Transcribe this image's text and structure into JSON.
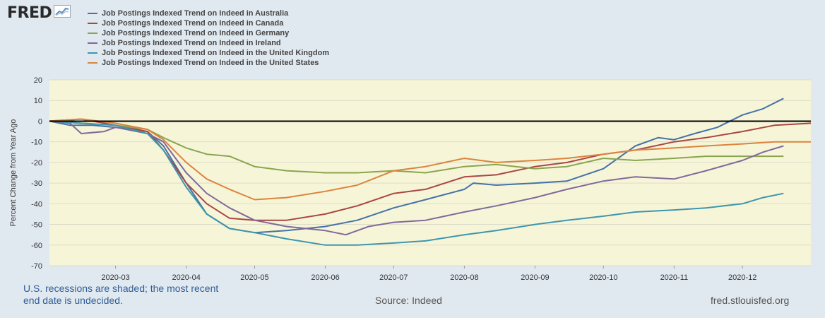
{
  "header": {
    "logo_text": "FRED",
    "logo_icon": "fred-chart-icon"
  },
  "footer": {
    "recession_note": "U.S. recessions are shaded; the most recent end date is undecided.",
    "source": "Source: Indeed",
    "site": "fred.stlouisfed.org"
  },
  "chart_data": {
    "type": "line",
    "ylabel": "Percent Change from Year Ago",
    "xlabel": "",
    "ylim": [
      -70,
      20
    ],
    "yticks": [
      20,
      10,
      0,
      -10,
      -20,
      -30,
      -40,
      -50,
      -60,
      -70
    ],
    "xlim": [
      "2020-02-01",
      "2020-12-31"
    ],
    "xticks": [
      "2020-03",
      "2020-04",
      "2020-05",
      "2020-06",
      "2020-07",
      "2020-08",
      "2020-09",
      "2020-10",
      "2020-11",
      "2020-12"
    ],
    "grid": "horizontal",
    "zero_line": true,
    "plot_background": "#f7f5d8",
    "series": [
      {
        "name": "Job Postings Indexed Trend on Indeed in Australia",
        "color": "#4572a7",
        "points": [
          [
            "2020-02-01",
            0
          ],
          [
            "2020-02-10",
            -2
          ],
          [
            "2020-02-20",
            -2
          ],
          [
            "2020-03-01",
            -3
          ],
          [
            "2020-03-15",
            -5
          ],
          [
            "2020-03-22",
            -12
          ],
          [
            "2020-04-01",
            -30
          ],
          [
            "2020-04-10",
            -45
          ],
          [
            "2020-04-20",
            -52
          ],
          [
            "2020-05-01",
            -54
          ],
          [
            "2020-05-15",
            -53
          ],
          [
            "2020-06-01",
            -51
          ],
          [
            "2020-06-15",
            -48
          ],
          [
            "2020-07-01",
            -42
          ],
          [
            "2020-07-15",
            -38
          ],
          [
            "2020-08-01",
            -33
          ],
          [
            "2020-08-05",
            -30
          ],
          [
            "2020-08-15",
            -31
          ],
          [
            "2020-09-01",
            -30
          ],
          [
            "2020-09-15",
            -29
          ],
          [
            "2020-10-01",
            -23
          ],
          [
            "2020-10-15",
            -12
          ],
          [
            "2020-10-25",
            -8
          ],
          [
            "2020-11-01",
            -9
          ],
          [
            "2020-11-10",
            -6
          ],
          [
            "2020-11-20",
            -3
          ],
          [
            "2020-12-01",
            3
          ],
          [
            "2020-12-10",
            6
          ],
          [
            "2020-12-19",
            11
          ]
        ]
      },
      {
        "name": "Job Postings Indexed Trend on Indeed in Canada",
        "color": "#aa4643",
        "points": [
          [
            "2020-02-01",
            0
          ],
          [
            "2020-02-15",
            1
          ],
          [
            "2020-03-01",
            -2
          ],
          [
            "2020-03-15",
            -5
          ],
          [
            "2020-03-22",
            -14
          ],
          [
            "2020-04-01",
            -30
          ],
          [
            "2020-04-10",
            -40
          ],
          [
            "2020-04-20",
            -47
          ],
          [
            "2020-05-01",
            -48
          ],
          [
            "2020-05-15",
            -48
          ],
          [
            "2020-06-01",
            -45
          ],
          [
            "2020-06-15",
            -41
          ],
          [
            "2020-07-01",
            -35
          ],
          [
            "2020-07-15",
            -33
          ],
          [
            "2020-08-01",
            -27
          ],
          [
            "2020-08-15",
            -26
          ],
          [
            "2020-09-01",
            -22
          ],
          [
            "2020-09-15",
            -20
          ],
          [
            "2020-10-01",
            -16
          ],
          [
            "2020-10-15",
            -14
          ],
          [
            "2020-11-01",
            -10
          ],
          [
            "2020-11-15",
            -8
          ],
          [
            "2020-12-01",
            -5
          ],
          [
            "2020-12-15",
            -2
          ],
          [
            "2020-12-31",
            -1
          ]
        ]
      },
      {
        "name": "Job Postings Indexed Trend on Indeed in Germany",
        "color": "#89a54e",
        "points": [
          [
            "2020-02-01",
            0
          ],
          [
            "2020-02-15",
            -1
          ],
          [
            "2020-03-01",
            -2
          ],
          [
            "2020-03-15",
            -4
          ],
          [
            "2020-03-22",
            -8
          ],
          [
            "2020-04-01",
            -13
          ],
          [
            "2020-04-10",
            -16
          ],
          [
            "2020-04-20",
            -17
          ],
          [
            "2020-05-01",
            -22
          ],
          [
            "2020-05-15",
            -24
          ],
          [
            "2020-06-01",
            -25
          ],
          [
            "2020-06-15",
            -25
          ],
          [
            "2020-07-01",
            -24
          ],
          [
            "2020-07-15",
            -25
          ],
          [
            "2020-08-01",
            -22
          ],
          [
            "2020-08-15",
            -21
          ],
          [
            "2020-09-01",
            -23
          ],
          [
            "2020-09-15",
            -22
          ],
          [
            "2020-10-01",
            -18
          ],
          [
            "2020-10-15",
            -19
          ],
          [
            "2020-11-01",
            -18
          ],
          [
            "2020-11-15",
            -17
          ],
          [
            "2020-12-01",
            -17
          ],
          [
            "2020-12-19",
            -17
          ]
        ]
      },
      {
        "name": "Job Postings Indexed Trend on Indeed in Ireland",
        "color": "#80699b",
        "points": [
          [
            "2020-02-01",
            0
          ],
          [
            "2020-02-10",
            -1
          ],
          [
            "2020-02-15",
            -6
          ],
          [
            "2020-02-25",
            -5
          ],
          [
            "2020-03-01",
            -3
          ],
          [
            "2020-03-15",
            -6
          ],
          [
            "2020-03-22",
            -10
          ],
          [
            "2020-04-01",
            -25
          ],
          [
            "2020-04-10",
            -35
          ],
          [
            "2020-04-20",
            -42
          ],
          [
            "2020-05-01",
            -48
          ],
          [
            "2020-05-15",
            -51
          ],
          [
            "2020-06-01",
            -53
          ],
          [
            "2020-06-10",
            -55
          ],
          [
            "2020-06-20",
            -51
          ],
          [
            "2020-07-01",
            -49
          ],
          [
            "2020-07-15",
            -48
          ],
          [
            "2020-08-01",
            -44
          ],
          [
            "2020-08-15",
            -41
          ],
          [
            "2020-09-01",
            -37
          ],
          [
            "2020-09-15",
            -33
          ],
          [
            "2020-10-01",
            -29
          ],
          [
            "2020-10-15",
            -27
          ],
          [
            "2020-11-01",
            -28
          ],
          [
            "2020-11-15",
            -24
          ],
          [
            "2020-12-01",
            -19
          ],
          [
            "2020-12-10",
            -15
          ],
          [
            "2020-12-19",
            -12
          ]
        ]
      },
      {
        "name": "Job Postings Indexed Trend on Indeed in the United Kingdom",
        "color": "#3d96ae",
        "points": [
          [
            "2020-02-01",
            0
          ],
          [
            "2020-02-15",
            -1
          ],
          [
            "2020-03-01",
            -2
          ],
          [
            "2020-03-15",
            -6
          ],
          [
            "2020-03-22",
            -14
          ],
          [
            "2020-04-01",
            -32
          ],
          [
            "2020-04-10",
            -45
          ],
          [
            "2020-04-20",
            -52
          ],
          [
            "2020-05-01",
            -54
          ],
          [
            "2020-05-15",
            -57
          ],
          [
            "2020-06-01",
            -60
          ],
          [
            "2020-06-15",
            -60
          ],
          [
            "2020-07-01",
            -59
          ],
          [
            "2020-07-15",
            -58
          ],
          [
            "2020-08-01",
            -55
          ],
          [
            "2020-08-15",
            -53
          ],
          [
            "2020-09-01",
            -50
          ],
          [
            "2020-09-15",
            -48
          ],
          [
            "2020-10-01",
            -46
          ],
          [
            "2020-10-15",
            -44
          ],
          [
            "2020-11-01",
            -43
          ],
          [
            "2020-11-15",
            -42
          ],
          [
            "2020-12-01",
            -40
          ],
          [
            "2020-12-10",
            -37
          ],
          [
            "2020-12-19",
            -35
          ]
        ]
      },
      {
        "name": "Job Postings Indexed Trend on Indeed in the United States",
        "color": "#db843d",
        "points": [
          [
            "2020-02-01",
            0
          ],
          [
            "2020-02-15",
            1
          ],
          [
            "2020-03-01",
            -1
          ],
          [
            "2020-03-15",
            -4
          ],
          [
            "2020-03-22",
            -9
          ],
          [
            "2020-04-01",
            -20
          ],
          [
            "2020-04-10",
            -28
          ],
          [
            "2020-04-20",
            -33
          ],
          [
            "2020-05-01",
            -38
          ],
          [
            "2020-05-15",
            -37
          ],
          [
            "2020-06-01",
            -34
          ],
          [
            "2020-06-15",
            -31
          ],
          [
            "2020-07-01",
            -24
          ],
          [
            "2020-07-15",
            -22
          ],
          [
            "2020-08-01",
            -18
          ],
          [
            "2020-08-15",
            -20
          ],
          [
            "2020-09-01",
            -19
          ],
          [
            "2020-09-15",
            -18
          ],
          [
            "2020-10-01",
            -16
          ],
          [
            "2020-10-15",
            -14
          ],
          [
            "2020-11-01",
            -13
          ],
          [
            "2020-11-15",
            -12
          ],
          [
            "2020-12-01",
            -11
          ],
          [
            "2020-12-15",
            -10
          ],
          [
            "2020-12-31",
            -10
          ]
        ]
      }
    ]
  }
}
